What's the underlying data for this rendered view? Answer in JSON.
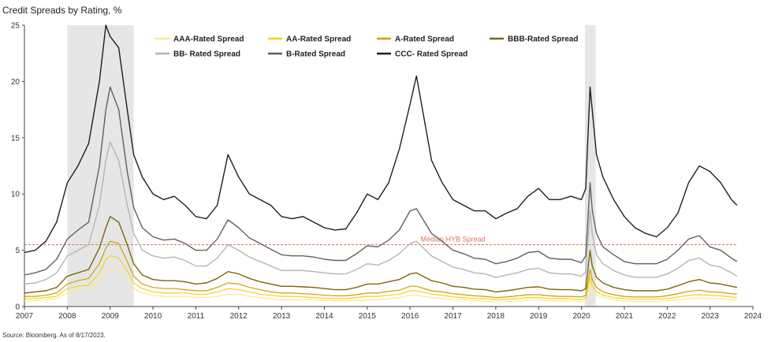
{
  "chart_data": {
    "type": "line",
    "title": "Credit Spreads by Rating, %",
    "source": "Source: Bloomberg. As of 8/17/2023.",
    "xlabel": "",
    "ylabel": "",
    "xlim": [
      2007.0,
      2024.0
    ],
    "ylim": [
      0,
      25
    ],
    "x_ticks": [
      2007,
      2008,
      2009,
      2010,
      2011,
      2012,
      2013,
      2014,
      2015,
      2016,
      2017,
      2018,
      2019,
      2020,
      2021,
      2022,
      2023,
      2024
    ],
    "y_ticks": [
      0,
      5,
      10,
      15,
      20,
      25
    ],
    "grid": false,
    "legend_position": "top",
    "recessions": [
      {
        "start": 2008.0,
        "end": 2009.55
      },
      {
        "start": 2020.08,
        "end": 2020.33
      }
    ],
    "median_hyb": {
      "label": "Median HYB Spread",
      "value": 5.5,
      "color": "#e0735a"
    },
    "x": [
      2007.0,
      2007.25,
      2007.5,
      2007.75,
      2008.0,
      2008.25,
      2008.5,
      2008.75,
      2008.9,
      2009.0,
      2009.2,
      2009.4,
      2009.55,
      2009.75,
      2010.0,
      2010.25,
      2010.5,
      2010.75,
      2011.0,
      2011.25,
      2011.5,
      2011.75,
      2012.0,
      2012.25,
      2012.5,
      2012.75,
      2013.0,
      2013.25,
      2013.5,
      2013.75,
      2014.0,
      2014.25,
      2014.5,
      2014.75,
      2015.0,
      2015.25,
      2015.5,
      2015.75,
      2016.0,
      2016.15,
      2016.5,
      2016.75,
      2017.0,
      2017.25,
      2017.5,
      2017.75,
      2018.0,
      2018.25,
      2018.5,
      2018.75,
      2019.0,
      2019.25,
      2019.5,
      2019.75,
      2020.0,
      2020.1,
      2020.2,
      2020.25,
      2020.35,
      2020.5,
      2020.75,
      2021.0,
      2021.25,
      2021.5,
      2021.75,
      2022.0,
      2022.25,
      2022.5,
      2022.75,
      2023.0,
      2023.25,
      2023.5,
      2023.63
    ],
    "series": [
      {
        "name": "AAA-Rated Spread",
        "color": "#fbe89a",
        "width": 1.2,
        "values": [
          0.5,
          0.5,
          0.6,
          0.7,
          1.2,
          1.4,
          1.5,
          2.2,
          3.2,
          3.3,
          3.3,
          2.5,
          1.6,
          1.2,
          1.0,
          0.9,
          0.9,
          0.9,
          0.8,
          0.8,
          0.9,
          1.1,
          1.1,
          0.9,
          0.8,
          0.7,
          0.6,
          0.6,
          0.6,
          0.6,
          0.55,
          0.5,
          0.5,
          0.55,
          0.6,
          0.6,
          0.7,
          0.8,
          1.0,
          1.0,
          0.8,
          0.7,
          0.6,
          0.6,
          0.5,
          0.5,
          0.4,
          0.45,
          0.5,
          0.55,
          0.6,
          0.5,
          0.5,
          0.5,
          0.45,
          0.6,
          2.2,
          1.5,
          1.0,
          0.8,
          0.6,
          0.5,
          0.45,
          0.45,
          0.45,
          0.5,
          0.6,
          0.7,
          0.75,
          0.7,
          0.7,
          0.6,
          0.6
        ]
      },
      {
        "name": "AA-Rated Spread",
        "color": "#f7d21b",
        "width": 1.2,
        "values": [
          0.7,
          0.7,
          0.8,
          0.9,
          1.6,
          1.8,
          1.9,
          3.0,
          4.2,
          4.5,
          4.3,
          3.2,
          2.1,
          1.6,
          1.3,
          1.2,
          1.2,
          1.2,
          1.1,
          1.1,
          1.3,
          1.6,
          1.5,
          1.3,
          1.1,
          1.0,
          0.9,
          0.9,
          0.85,
          0.8,
          0.75,
          0.7,
          0.7,
          0.8,
          0.9,
          0.9,
          1.0,
          1.1,
          1.4,
          1.4,
          1.1,
          1.0,
          0.85,
          0.8,
          0.7,
          0.7,
          0.6,
          0.65,
          0.7,
          0.8,
          0.8,
          0.7,
          0.7,
          0.7,
          0.6,
          0.8,
          2.6,
          1.9,
          1.3,
          1.0,
          0.8,
          0.7,
          0.65,
          0.65,
          0.65,
          0.7,
          0.85,
          1.0,
          1.05,
          1.0,
          0.95,
          0.85,
          0.8
        ]
      },
      {
        "name": "A-Rated Spread",
        "color": "#c9a200",
        "width": 1.2,
        "values": [
          0.9,
          0.9,
          1.0,
          1.2,
          2.0,
          2.3,
          2.5,
          3.8,
          5.2,
          5.8,
          5.6,
          4.0,
          2.7,
          2.0,
          1.7,
          1.6,
          1.6,
          1.5,
          1.4,
          1.4,
          1.7,
          2.1,
          2.0,
          1.7,
          1.5,
          1.3,
          1.2,
          1.2,
          1.15,
          1.1,
          1.0,
          0.95,
          0.95,
          1.05,
          1.2,
          1.2,
          1.35,
          1.45,
          1.8,
          1.8,
          1.4,
          1.3,
          1.15,
          1.05,
          0.95,
          0.9,
          0.8,
          0.85,
          0.95,
          1.05,
          1.05,
          0.95,
          0.9,
          0.9,
          0.85,
          1.0,
          3.3,
          2.4,
          1.7,
          1.3,
          1.05,
          0.9,
          0.85,
          0.85,
          0.85,
          0.95,
          1.15,
          1.35,
          1.45,
          1.3,
          1.25,
          1.15,
          1.1
        ]
      },
      {
        "name": "BBB-Rated Spread",
        "color": "#7b6608",
        "width": 1.4,
        "values": [
          1.2,
          1.3,
          1.4,
          1.7,
          2.7,
          3.0,
          3.3,
          5.2,
          7.0,
          8.0,
          7.5,
          5.5,
          3.8,
          2.8,
          2.4,
          2.3,
          2.3,
          2.2,
          2.0,
          2.1,
          2.5,
          3.1,
          2.9,
          2.5,
          2.2,
          2.0,
          1.8,
          1.8,
          1.75,
          1.7,
          1.6,
          1.5,
          1.5,
          1.7,
          2.0,
          2.0,
          2.2,
          2.4,
          2.9,
          3.0,
          2.3,
          2.1,
          1.8,
          1.7,
          1.55,
          1.5,
          1.3,
          1.4,
          1.55,
          1.7,
          1.75,
          1.55,
          1.5,
          1.5,
          1.4,
          1.6,
          5.0,
          3.6,
          2.6,
          2.1,
          1.7,
          1.5,
          1.4,
          1.4,
          1.4,
          1.55,
          1.85,
          2.2,
          2.4,
          2.1,
          2.0,
          1.8,
          1.7
        ]
      },
      {
        "name": "BB- Rated Spread",
        "color": "#b5b5b5",
        "width": 1.4,
        "values": [
          2.0,
          2.1,
          2.4,
          3.0,
          4.5,
          5.0,
          5.5,
          9.0,
          13.0,
          14.6,
          13.0,
          9.0,
          6.5,
          5.0,
          4.5,
          4.3,
          4.4,
          4.1,
          3.6,
          3.6,
          4.3,
          5.5,
          5.0,
          4.4,
          4.0,
          3.6,
          3.2,
          3.2,
          3.2,
          3.1,
          3.0,
          2.9,
          2.9,
          3.3,
          3.8,
          3.7,
          4.1,
          4.7,
          5.6,
          5.8,
          4.5,
          4.0,
          3.5,
          3.3,
          3.0,
          2.9,
          2.6,
          2.8,
          3.0,
          3.3,
          3.4,
          3.0,
          2.9,
          2.9,
          2.7,
          3.1,
          8.5,
          6.5,
          4.6,
          3.8,
          3.2,
          2.8,
          2.6,
          2.6,
          2.6,
          2.9,
          3.4,
          4.1,
          4.3,
          3.7,
          3.5,
          3.0,
          2.7
        ]
      },
      {
        "name": "B-Rated Spread",
        "color": "#616161",
        "width": 1.4,
        "values": [
          2.8,
          3.0,
          3.3,
          4.2,
          6.0,
          6.8,
          7.5,
          12.5,
          17.5,
          19.5,
          17.5,
          12.0,
          8.8,
          7.0,
          6.2,
          5.9,
          6.0,
          5.6,
          5.0,
          5.0,
          6.0,
          7.7,
          7.0,
          6.1,
          5.6,
          5.1,
          4.6,
          4.5,
          4.5,
          4.4,
          4.2,
          4.1,
          4.1,
          4.7,
          5.4,
          5.3,
          5.9,
          6.8,
          8.5,
          8.7,
          6.5,
          5.8,
          5.0,
          4.7,
          4.3,
          4.2,
          3.8,
          4.0,
          4.3,
          4.8,
          4.9,
          4.3,
          4.2,
          4.2,
          3.9,
          4.5,
          11.0,
          8.6,
          6.5,
          5.3,
          4.6,
          4.0,
          3.8,
          3.8,
          3.8,
          4.2,
          5.0,
          6.0,
          6.3,
          5.3,
          5.0,
          4.3,
          4.0
        ]
      },
      {
        "name": "CCC- Rated Spread",
        "color": "#1f1f1f",
        "width": 1.4,
        "values": [
          4.8,
          5.0,
          5.8,
          7.5,
          11.0,
          12.5,
          14.5,
          20.0,
          25.0,
          24.0,
          23.0,
          17.5,
          13.5,
          11.5,
          10.0,
          9.5,
          9.8,
          9.0,
          8.0,
          7.8,
          9.0,
          13.5,
          11.5,
          10.0,
          9.5,
          9.0,
          8.0,
          7.8,
          8.0,
          7.5,
          7.0,
          6.8,
          6.9,
          8.3,
          10.0,
          9.5,
          11.0,
          14.0,
          18.0,
          20.5,
          13.0,
          11.0,
          9.5,
          9.0,
          8.5,
          8.5,
          7.8,
          8.3,
          8.7,
          9.8,
          10.5,
          9.5,
          9.5,
          9.8,
          9.5,
          10.5,
          19.5,
          17.5,
          13.5,
          11.5,
          9.5,
          8.0,
          7.0,
          6.5,
          6.2,
          7.0,
          8.3,
          11.0,
          12.5,
          12.0,
          11.0,
          9.5,
          9.0
        ]
      }
    ]
  }
}
